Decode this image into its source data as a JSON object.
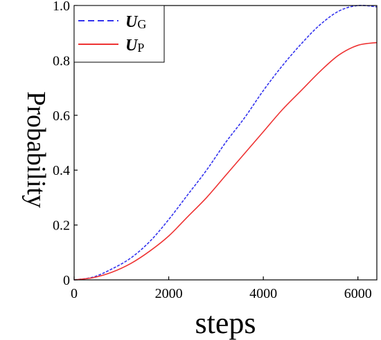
{
  "chart_data": {
    "type": "line",
    "xlabel": "steps",
    "ylabel": "Probability",
    "xlim": [
      0,
      6400
    ],
    "ylim": [
      0,
      1.0
    ],
    "x_ticks": [
      0,
      2000,
      4000,
      6000
    ],
    "x_tick_labels": [
      "0",
      "2000",
      "4000",
      "6000"
    ],
    "y_ticks": [
      0,
      0.2,
      0.4,
      0.6,
      0.8,
      1.0
    ],
    "y_tick_labels": [
      "0",
      "0.2",
      "0.4",
      "0.6",
      "0.8",
      "1.0"
    ],
    "legend_position": "top-left",
    "grid": false,
    "series": [
      {
        "name": "U",
        "subscript": "G",
        "color": "#3333ee",
        "style": "dashed",
        "x": [
          0,
          400,
          800,
          1200,
          1600,
          2000,
          2400,
          2800,
          3200,
          3600,
          4000,
          4400,
          4800,
          5200,
          5600,
          6000,
          6400
        ],
        "y": [
          0.0,
          0.01,
          0.04,
          0.08,
          0.14,
          0.22,
          0.31,
          0.4,
          0.5,
          0.59,
          0.69,
          0.78,
          0.86,
          0.93,
          0.98,
          1.0,
          0.995
        ]
      },
      {
        "name": "U",
        "subscript": "P",
        "color": "#ee3333",
        "style": "solid",
        "x": [
          0,
          400,
          800,
          1200,
          1600,
          2000,
          2400,
          2800,
          3200,
          3600,
          4000,
          4400,
          4800,
          5200,
          5600,
          6000,
          6400
        ],
        "y": [
          0.0,
          0.008,
          0.028,
          0.06,
          0.105,
          0.16,
          0.23,
          0.3,
          0.38,
          0.46,
          0.54,
          0.62,
          0.69,
          0.76,
          0.82,
          0.855,
          0.865
        ]
      }
    ]
  }
}
